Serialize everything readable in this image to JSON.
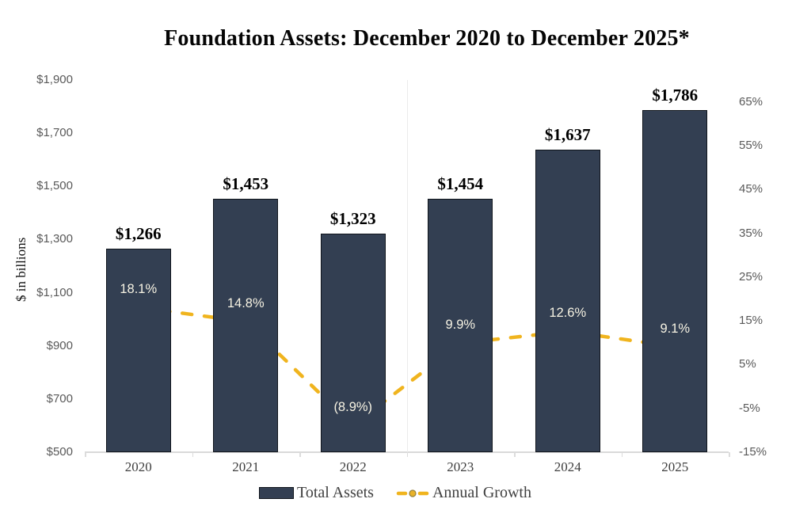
{
  "title": "Foundation Assets: December 2020 to December 2025*",
  "y_axis_label": "$ in billions",
  "colors": {
    "bar_fill": "#333F52",
    "bar_border": "#10151C",
    "line": "#F0B41E",
    "marker_fill": "#E8B229",
    "marker_border": "#94803B",
    "growth_label": "#F7F3E3",
    "axis_text": "#595959",
    "axis_line": "#D9D9D9"
  },
  "legend": {
    "items": [
      "Total Assets",
      "Annual Growth"
    ]
  },
  "chart_data": {
    "type": "bar+line",
    "title": "Foundation Assets: December 2020 to December 2025*",
    "categories": [
      "2020",
      "2021",
      "2022",
      "2023",
      "2024",
      "2025"
    ],
    "series": [
      {
        "name": "Total Assets",
        "type": "bar",
        "axis": "left",
        "values": [
          1266,
          1453,
          1323,
          1454,
          1637,
          1786
        ],
        "labels": [
          "$1,266",
          "$1,453",
          "$1,323",
          "$1,454",
          "$1,637",
          "$1,786"
        ]
      },
      {
        "name": "Annual Growth",
        "type": "line",
        "axis": "right",
        "values": [
          18.1,
          14.8,
          -8.9,
          9.9,
          12.6,
          9.1
        ],
        "labels": [
          "18.1%",
          "14.8%",
          "(8.9%)",
          "9.9%",
          "12.6%",
          "9.1%"
        ]
      }
    ],
    "left_axis": {
      "label": "$ in billions",
      "min": 500,
      "max": 1900,
      "step": 200,
      "tick_labels": [
        "$500",
        "$700",
        "$900",
        "$1,100",
        "$1,300",
        "$1,500",
        "$1,700",
        "$1,900"
      ]
    },
    "right_axis": {
      "min": -15,
      "max": 70,
      "step": 10,
      "tick_labels": [
        "-15%",
        "-5%",
        "5%",
        "15%",
        "25%",
        "35%",
        "45%",
        "55%",
        "65%"
      ]
    },
    "layout": {
      "gridlines": "none",
      "legend_position": "bottom",
      "line_style": "dashed",
      "marker": "circle"
    }
  }
}
